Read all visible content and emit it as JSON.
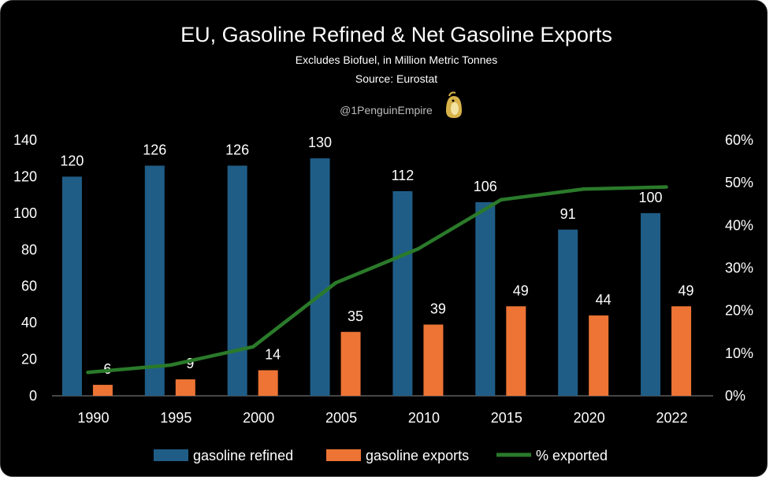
{
  "header": {
    "title": "EU, Gasoline Refined & Net Gasoline Exports",
    "subtitle": "Excludes Biofuel, in Million Metric Tonnes",
    "source": "Source: Eurostat",
    "handle": "@1PenguinEmpire"
  },
  "colors": {
    "background": "#000000",
    "refined": "#1f5d86",
    "exports": "#ed7434",
    "exported_pct": "#2a7a2a",
    "text": "#ffffff",
    "axis": "#8c8c8c"
  },
  "chart_data": {
    "type": "bar",
    "title": "EU, Gasoline Refined & Net Gasoline Exports",
    "subtitle": "Excludes Biofuel, in Million Metric Tonnes",
    "categories": [
      "1990",
      "1995",
      "2000",
      "2005",
      "2010",
      "2015",
      "2020",
      "2022"
    ],
    "series": [
      {
        "name": "gasoline refined",
        "type": "bar",
        "axis": "left",
        "values": [
          120,
          126,
          126,
          130,
          112,
          106,
          91,
          100
        ],
        "labels": [
          "120",
          "126",
          "126",
          "130",
          "112",
          "106",
          "91",
          "100"
        ]
      },
      {
        "name": "gasoline exports",
        "type": "bar",
        "axis": "left",
        "values": [
          6,
          9,
          14,
          35,
          39,
          49,
          44,
          49
        ],
        "labels": [
          "6",
          "9",
          "14",
          "35",
          "39",
          "49",
          "44",
          "49"
        ]
      },
      {
        "name": "% exported",
        "type": "line",
        "axis": "right",
        "values": [
          5.5,
          7.2,
          11.5,
          26.5,
          34.5,
          46.0,
          48.5,
          49.0
        ]
      }
    ],
    "ylim_left": [
      0,
      140
    ],
    "yticks_left": [
      "0",
      "20",
      "40",
      "60",
      "80",
      "100",
      "120",
      "140"
    ],
    "ylim_right": [
      0,
      60
    ],
    "yticks_right": [
      "0%",
      "10%",
      "20%",
      "30%",
      "40%",
      "50%",
      "60%"
    ],
    "grid": false,
    "legend": "bottom"
  }
}
